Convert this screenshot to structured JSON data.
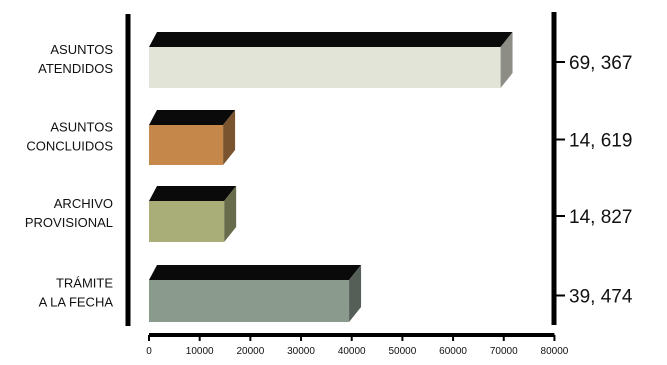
{
  "chart_data": {
    "type": "bar",
    "orientation": "horizontal",
    "style": "3d",
    "categories": [
      [
        "ASUNTOS",
        "ATENDIDOS"
      ],
      [
        "ASUNTOS",
        "CONCLUIDOS"
      ],
      [
        "ARCHIVO",
        "PROVISIONAL"
      ],
      [
        "TRÁMITE",
        "A LA FECHA"
      ]
    ],
    "values": [
      69367,
      14619,
      14827,
      39474
    ],
    "value_labels": [
      "69, 367",
      "14, 619",
      "14, 827",
      "39, 474"
    ],
    "xlim": [
      0,
      80000
    ],
    "xticks": [
      0,
      10000,
      20000,
      30000,
      40000,
      50000,
      60000,
      70000,
      80000
    ],
    "xtick_labels": [
      "0",
      "10000",
      "20000",
      "30000",
      "40000",
      "50000",
      "60000",
      "70000",
      "80000"
    ],
    "bar_colors": [
      "#e3e4d8",
      "#c5874a",
      "#a9ae78",
      "#8a9a8d"
    ],
    "top_color": "#0a0a0a",
    "axis_color": "#000000",
    "title": "",
    "xlabel": "",
    "ylabel": "",
    "grid": false,
    "legend": "none"
  }
}
